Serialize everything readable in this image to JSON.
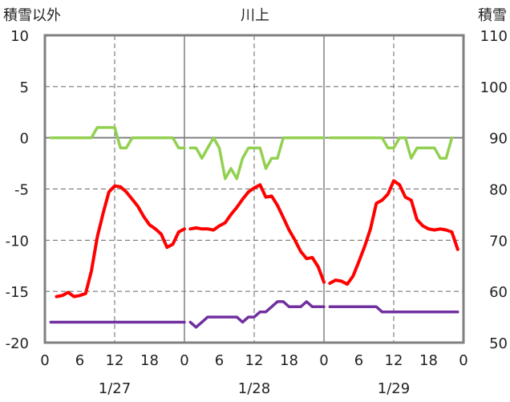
{
  "chart_data": {
    "type": "line",
    "title": "川上",
    "left_axis_label": "積雪以外",
    "right_axis_label": "積雪",
    "left_ylim": [
      -20,
      10
    ],
    "left_yticks": [
      10,
      5,
      0,
      -5,
      -10,
      -15,
      -20
    ],
    "right_ylim": [
      50,
      110
    ],
    "right_yticks": [
      110,
      100,
      90,
      80,
      70,
      60,
      50
    ],
    "x_hours_per_day": 24,
    "x_tick_labels": [
      "0",
      "6",
      "12",
      "18",
      "0",
      "6",
      "12",
      "18",
      "0",
      "6",
      "12",
      "18",
      "0"
    ],
    "dates": [
      "1/27",
      "1/28",
      "1/29"
    ],
    "grid": "dashed vertical at 12h, solid day separators",
    "series": [
      {
        "axis": "left",
        "color": "#ff0000",
        "days": [
          [
            [
              2,
              -15.5
            ],
            [
              3,
              -15.4
            ],
            [
              4,
              -15.1
            ],
            [
              5,
              -15.5
            ],
            [
              6,
              -15.4
            ],
            [
              7,
              -15.2
            ],
            [
              8,
              -13
            ],
            [
              9,
              -9.7
            ],
            [
              10,
              -7.4
            ],
            [
              11,
              -5.3
            ],
            [
              12,
              -4.7
            ],
            [
              13,
              -4.8
            ],
            [
              14,
              -5.3
            ],
            [
              15,
              -6
            ],
            [
              16,
              -6.7
            ],
            [
              17,
              -7.7
            ],
            [
              18,
              -8.5
            ],
            [
              19,
              -8.9
            ],
            [
              20,
              -9.4
            ],
            [
              21,
              -10.7
            ],
            [
              22,
              -10.4
            ],
            [
              23,
              -9.2
            ],
            [
              24,
              -8.9
            ]
          ],
          [
            [
              1,
              -8.9
            ],
            [
              2,
              -8.8
            ],
            [
              3,
              -8.9
            ],
            [
              4,
              -8.9
            ],
            [
              5,
              -9
            ],
            [
              6,
              -8.6
            ],
            [
              7,
              -8.3
            ],
            [
              8,
              -7.5
            ],
            [
              9,
              -6.8
            ],
            [
              10,
              -6
            ],
            [
              11,
              -5.3
            ],
            [
              12,
              -4.9
            ],
            [
              13,
              -4.6
            ],
            [
              14,
              -5.8
            ],
            [
              15,
              -5.7
            ],
            [
              16,
              -6.6
            ],
            [
              17,
              -7.8
            ],
            [
              18,
              -9
            ],
            [
              19,
              -10
            ],
            [
              20,
              -11.1
            ],
            [
              21,
              -11.8
            ],
            [
              22,
              -11.7
            ],
            [
              23,
              -12.6
            ],
            [
              24,
              -14.1
            ]
          ],
          [
            [
              1,
              -14.2
            ],
            [
              2,
              -13.9
            ],
            [
              3,
              -14
            ],
            [
              4,
              -14.3
            ],
            [
              5,
              -13.5
            ],
            [
              6,
              -12.1
            ],
            [
              7,
              -10.6
            ],
            [
              8,
              -8.9
            ],
            [
              9,
              -6.4
            ],
            [
              10,
              -6.1
            ],
            [
              11,
              -5.5
            ],
            [
              12,
              -4.2
            ],
            [
              13,
              -4.6
            ],
            [
              14,
              -5.8
            ],
            [
              15,
              -6.1
            ],
            [
              16,
              -8
            ],
            [
              17,
              -8.6
            ],
            [
              18,
              -8.9
            ],
            [
              19,
              -9
            ],
            [
              20,
              -8.9
            ],
            [
              21,
              -9
            ],
            [
              22,
              -9.2
            ],
            [
              23,
              -10.9
            ]
          ]
        ]
      },
      {
        "axis": "left",
        "color": "#92d050",
        "days": [
          [
            [
              1,
              0
            ],
            [
              2,
              0
            ],
            [
              3,
              0
            ],
            [
              4,
              0
            ],
            [
              5,
              0
            ],
            [
              6,
              0
            ],
            [
              7,
              0
            ],
            [
              8,
              0
            ],
            [
              9,
              1
            ],
            [
              10,
              1
            ],
            [
              11,
              1
            ],
            [
              12,
              1
            ],
            [
              13,
              -1
            ],
            [
              14,
              -1
            ],
            [
              15,
              0
            ],
            [
              16,
              0
            ],
            [
              17,
              0
            ],
            [
              18,
              0
            ],
            [
              19,
              0
            ],
            [
              20,
              0
            ],
            [
              21,
              0
            ],
            [
              22,
              0
            ],
            [
              23,
              -1
            ],
            [
              24,
              -1
            ]
          ],
          [
            [
              1,
              -1
            ],
            [
              2,
              -1
            ],
            [
              3,
              -2
            ],
            [
              4,
              -1
            ],
            [
              5,
              0
            ],
            [
              6,
              -1
            ],
            [
              7,
              -4
            ],
            [
              8,
              -3
            ],
            [
              9,
              -4
            ],
            [
              10,
              -2
            ],
            [
              11,
              -1
            ],
            [
              12,
              -1
            ],
            [
              13,
              -1
            ],
            [
              14,
              -3
            ],
            [
              15,
              -2
            ],
            [
              16,
              -2
            ],
            [
              17,
              0
            ],
            [
              18,
              0
            ],
            [
              19,
              0
            ],
            [
              20,
              0
            ],
            [
              21,
              0
            ],
            [
              22,
              0
            ],
            [
              23,
              0
            ],
            [
              24,
              0
            ]
          ],
          [
            [
              1,
              0
            ],
            [
              2,
              0
            ],
            [
              3,
              0
            ],
            [
              4,
              0
            ],
            [
              5,
              0
            ],
            [
              6,
              0
            ],
            [
              7,
              0
            ],
            [
              8,
              0
            ],
            [
              9,
              0
            ],
            [
              10,
              0
            ],
            [
              11,
              -1
            ],
            [
              12,
              -1
            ],
            [
              13,
              0
            ],
            [
              14,
              0
            ],
            [
              15,
              -2
            ],
            [
              16,
              -1
            ],
            [
              17,
              -1
            ],
            [
              18,
              -1
            ],
            [
              19,
              -1
            ],
            [
              20,
              -2
            ],
            [
              21,
              -2
            ],
            [
              22,
              0
            ]
          ]
        ]
      },
      {
        "axis": "right",
        "color": "#7030a0",
        "days": [
          [
            [
              1,
              54
            ],
            [
              24,
              54
            ]
          ],
          [
            [
              1,
              54
            ],
            [
              2,
              53
            ],
            [
              3,
              54
            ],
            [
              4,
              55
            ],
            [
              5,
              55
            ],
            [
              6,
              55
            ],
            [
              7,
              55
            ],
            [
              8,
              55
            ],
            [
              9,
              55
            ],
            [
              10,
              54
            ],
            [
              11,
              55
            ],
            [
              12,
              55
            ],
            [
              13,
              56
            ],
            [
              14,
              56
            ],
            [
              15,
              57
            ],
            [
              16,
              58
            ],
            [
              17,
              58
            ],
            [
              18,
              57
            ],
            [
              19,
              57
            ],
            [
              20,
              57
            ],
            [
              21,
              58
            ],
            [
              22,
              57
            ],
            [
              23,
              57
            ],
            [
              24,
              57
            ]
          ],
          [
            [
              1,
              57
            ],
            [
              2,
              57
            ],
            [
              3,
              57
            ],
            [
              4,
              57
            ],
            [
              5,
              57
            ],
            [
              6,
              57
            ],
            [
              7,
              57
            ],
            [
              8,
              57
            ],
            [
              9,
              57
            ],
            [
              10,
              56
            ],
            [
              11,
              56
            ],
            [
              12,
              56
            ],
            [
              13,
              56
            ],
            [
              14,
              56
            ],
            [
              15,
              56
            ],
            [
              16,
              56
            ],
            [
              17,
              56
            ],
            [
              18,
              56
            ],
            [
              19,
              56
            ],
            [
              20,
              56
            ],
            [
              21,
              56
            ],
            [
              22,
              56
            ],
            [
              23,
              56
            ]
          ]
        ]
      }
    ]
  }
}
